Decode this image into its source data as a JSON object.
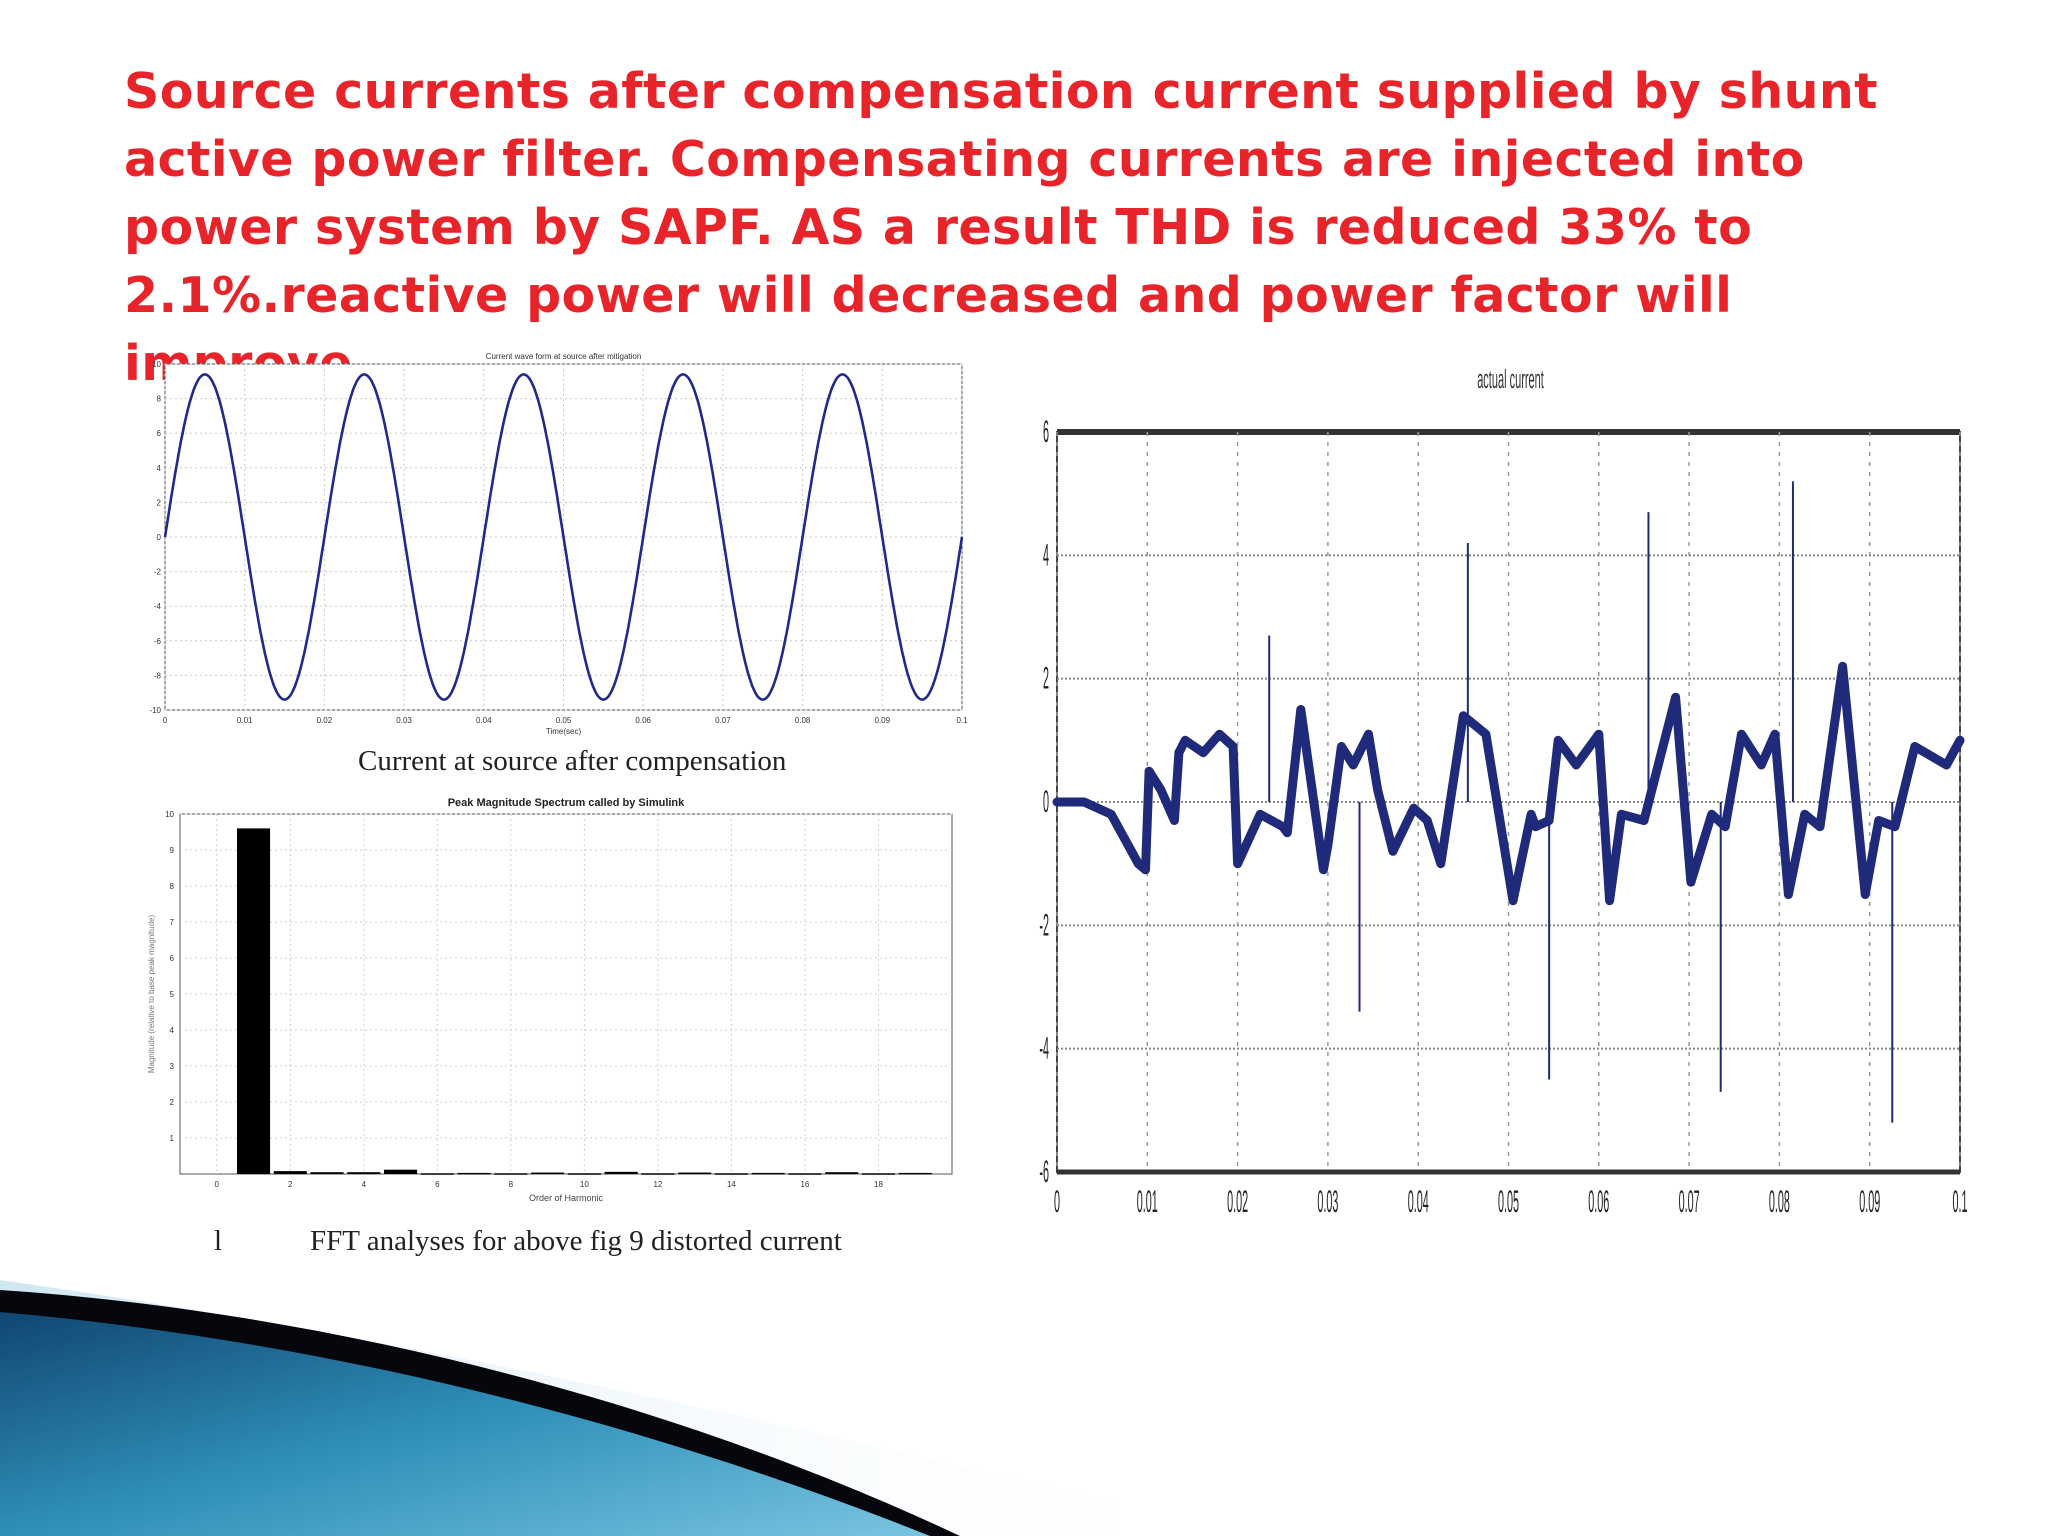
{
  "slide": {
    "headline": "Source currents after compensation current supplied by shunt active power filter. Compensating currents are injected into power system by SAPF. AS a result THD is reduced 33% to 2.1%.reactive power will decreased and power factor will improve.",
    "headline_color": "#e8242b",
    "caption_top": "Current at source after compensation",
    "caption_bottom_marker": "l",
    "caption_bottom": "FFT analyses for above fig 9 distorted current"
  },
  "chart_data": [
    {
      "type": "line",
      "title": "Current wave form at source after mitigation",
      "xlabel": "Time(sec)",
      "ylabel": "",
      "xlim": [
        0,
        0.1
      ],
      "ylim": [
        -10,
        10
      ],
      "x_ticks": [
        0,
        0.01,
        0.02,
        0.03,
        0.04,
        0.05,
        0.06,
        0.07,
        0.08,
        0.09,
        0.1
      ],
      "y_ticks": [
        -10,
        -8,
        -6,
        -4,
        -2,
        0,
        2,
        4,
        6,
        8,
        10
      ],
      "grid": true,
      "series": [
        {
          "amplitude": 9.4,
          "frequency_hz": 50,
          "x": [
            0,
            0.005,
            0.01,
            0.015,
            0.02,
            0.025,
            0.03,
            0.035,
            0.04,
            0.045,
            0.05,
            0.055,
            0.06,
            0.065,
            0.07,
            0.075,
            0.08,
            0.085,
            0.09,
            0.095,
            0.1
          ],
          "y": [
            0,
            9.4,
            0,
            -9.4,
            0,
            9.4,
            0,
            -9.4,
            0,
            9.4,
            0,
            -9.4,
            0,
            9.4,
            0,
            -9.4,
            0,
            9.4,
            0,
            -9.4,
            0
          ],
          "color": "#1f2a8a"
        }
      ]
    },
    {
      "type": "bar",
      "title": "Peak Magnitude Spectrum called by Simulink",
      "xlabel": "Order of Harmonic",
      "ylabel": "Magnitude (relative to base peak magnitude)",
      "xlim": [
        -1,
        20
      ],
      "ylim": [
        0,
        10
      ],
      "x_ticks": [
        0,
        2,
        4,
        6,
        8,
        10,
        12,
        14,
        16,
        18
      ],
      "y_ticks": [
        1,
        2,
        3,
        4,
        5,
        6,
        7,
        8,
        9,
        10
      ],
      "grid": true,
      "harmonics": [
        1,
        2,
        3,
        4,
        5,
        6,
        7,
        8,
        9,
        10,
        11,
        12,
        13,
        14,
        15,
        16,
        17,
        18,
        19
      ],
      "values": [
        9.6,
        0.08,
        0.05,
        0.05,
        0.12,
        0.02,
        0.03,
        0.02,
        0.04,
        0.02,
        0.06,
        0.02,
        0.04,
        0.02,
        0.03,
        0.02,
        0.05,
        0.02,
        0.03
      ],
      "color": "#000000"
    },
    {
      "type": "line",
      "title": "actual current",
      "xlabel": "",
      "ylabel": "",
      "xlim": [
        0,
        0.1
      ],
      "ylim": [
        -6,
        6
      ],
      "x_ticks": [
        0,
        0.01,
        0.02,
        0.03,
        0.04,
        0.05,
        0.06,
        0.07,
        0.08,
        0.09,
        0.1
      ],
      "y_ticks": [
        -6,
        -4,
        -2,
        0,
        2,
        4,
        6
      ],
      "grid": true,
      "series": [
        {
          "x": [
            0,
            0.003,
            0.006,
            0.009,
            0.0098,
            0.0102,
            0.0115,
            0.013,
            0.0135,
            0.0142,
            0.0162,
            0.018,
            0.0195,
            0.02,
            0.0225,
            0.025,
            0.0255,
            0.027,
            0.0295,
            0.03,
            0.0315,
            0.0328,
            0.0345,
            0.0355,
            0.0372,
            0.0395,
            0.041,
            0.0425,
            0.045,
            0.0475,
            0.0505,
            0.0525,
            0.053,
            0.0545,
            0.0555,
            0.0575,
            0.06,
            0.0612,
            0.0625,
            0.065,
            0.0685,
            0.0702,
            0.0725,
            0.074,
            0.0758,
            0.078,
            0.0795,
            0.081,
            0.0828,
            0.0845,
            0.087,
            0.0895,
            0.091,
            0.0928,
            0.095,
            0.0985,
            0.1
          ],
          "y": [
            0,
            0,
            -0.2,
            -1.0,
            -1.1,
            0.5,
            0.2,
            -0.3,
            0.8,
            1.0,
            0.8,
            1.1,
            0.9,
            -1.0,
            -0.2,
            -0.4,
            -0.5,
            1.5,
            -1.1,
            -0.7,
            0.9,
            0.6,
            1.1,
            0.2,
            -0.8,
            -0.1,
            -0.3,
            -1.0,
            1.4,
            1.1,
            -1.6,
            -0.2,
            -0.4,
            -0.3,
            1.0,
            0.6,
            1.1,
            -1.6,
            -0.2,
            -0.3,
            1.7,
            -1.3,
            -0.2,
            -0.4,
            1.1,
            0.6,
            1.1,
            -1.5,
            -0.2,
            -0.4,
            2.2,
            -1.5,
            -0.3,
            -0.4,
            0.9,
            0.6,
            1.0
          ],
          "spikes": [
            {
              "x": 0.0235,
              "y": 2.7
            },
            {
              "x": 0.0335,
              "y": -3.4
            },
            {
              "x": 0.0455,
              "y": 4.2
            },
            {
              "x": 0.0545,
              "y": -4.5
            },
            {
              "x": 0.0655,
              "y": 4.7
            },
            {
              "x": 0.0735,
              "y": -4.7
            },
            {
              "x": 0.0815,
              "y": 5.2
            },
            {
              "x": 0.0925,
              "y": -5.2
            }
          ],
          "color": "#1f2a7a"
        }
      ]
    }
  ]
}
